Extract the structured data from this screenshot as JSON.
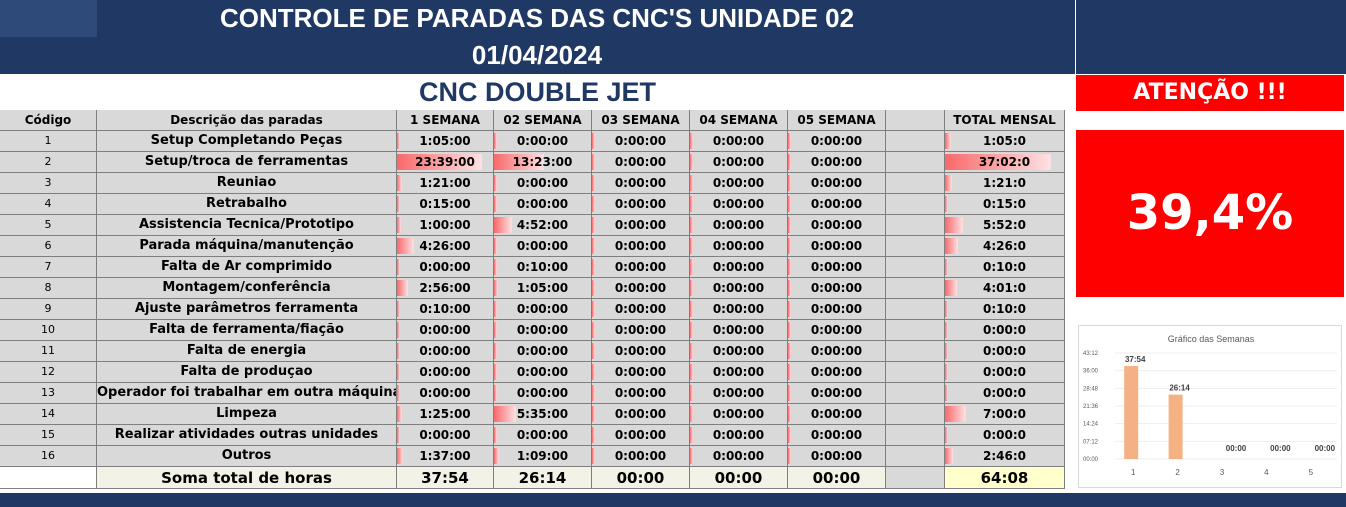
{
  "header": {
    "title": "CONTROLE DE PARADAS DAS CNC'S UNIDADE 02",
    "date": "01/04/2024",
    "machine": "CNC DOUBLE JET"
  },
  "table": {
    "columns": {
      "code": "Código",
      "description": "Descrição das paradas",
      "weeks": [
        "1 SEMANA",
        "02 SEMANA",
        "03 SEMANA",
        "04 SEMANA",
        "05 SEMANA"
      ],
      "total": "TOTAL MENSAL"
    },
    "rows": [
      {
        "code": "1",
        "description": "Setup Completando Peças",
        "weeks": [
          "1:05:00",
          "0:00:00",
          "0:00:00",
          "0:00:00",
          "0:00:00"
        ],
        "week_bars": [
          0,
          0,
          0,
          0,
          0
        ],
        "total": "1:05:0",
        "total_bar": 0.05
      },
      {
        "code": "2",
        "description": "Setup/troca de ferramentas",
        "weeks": [
          "23:39:00",
          "13:23:00",
          "0:00:00",
          "0:00:00",
          "0:00:00"
        ],
        "week_bars": [
          0.95,
          0.55,
          0,
          0,
          0
        ],
        "total": "37:02:0",
        "total_bar": 0.95
      },
      {
        "code": "3",
        "description": "Reuniao",
        "weeks": [
          "1:21:00",
          "0:00:00",
          "0:00:00",
          "0:00:00",
          "0:00:00"
        ],
        "week_bars": [
          0.06,
          0,
          0,
          0,
          0
        ],
        "total": "1:21:0",
        "total_bar": 0.06
      },
      {
        "code": "4",
        "description": "Retrabalho",
        "weeks": [
          "0:15:00",
          "0:00:00",
          "0:00:00",
          "0:00:00",
          "0:00:00"
        ],
        "week_bars": [
          0.02,
          0,
          0,
          0,
          0
        ],
        "total": "0:15:0",
        "total_bar": 0.02
      },
      {
        "code": "5",
        "description": "Assistencia Tecnica/Prototipo",
        "weeks": [
          "1:00:00",
          "4:52:00",
          "0:00:00",
          "0:00:00",
          "0:00:00"
        ],
        "week_bars": [
          0.05,
          0.2,
          0,
          0,
          0
        ],
        "total": "5:52:0",
        "total_bar": 0.16
      },
      {
        "code": "6",
        "description": "Parada máquina/manutenção",
        "weeks": [
          "4:26:00",
          "0:00:00",
          "0:00:00",
          "0:00:00",
          "0:00:00"
        ],
        "week_bars": [
          0.19,
          0,
          0,
          0,
          0
        ],
        "total": "4:26:0",
        "total_bar": 0.12
      },
      {
        "code": "7",
        "description": "Falta de Ar comprimido",
        "weeks": [
          "0:00:00",
          "0:10:00",
          "0:00:00",
          "0:00:00",
          "0:00:00"
        ],
        "week_bars": [
          0,
          0.01,
          0,
          0,
          0
        ],
        "total": "0:10:0",
        "total_bar": 0.01
      },
      {
        "code": "8",
        "description": "Montagem/conferência",
        "weeks": [
          "2:56:00",
          "1:05:00",
          "0:00:00",
          "0:00:00",
          "0:00:00"
        ],
        "week_bars": [
          0.12,
          0.04,
          0,
          0,
          0
        ],
        "total": "4:01:0",
        "total_bar": 0.11
      },
      {
        "code": "9",
        "description": "Ajuste parâmetros ferramenta",
        "weeks": [
          "0:10:00",
          "0:00:00",
          "0:00:00",
          "0:00:00",
          "0:00:00"
        ],
        "week_bars": [
          0.01,
          0,
          0,
          0,
          0
        ],
        "total": "0:10:0",
        "total_bar": 0.01
      },
      {
        "code": "10",
        "description": "Falta de ferramenta/fiação",
        "weeks": [
          "0:00:00",
          "0:00:00",
          "0:00:00",
          "0:00:00",
          "0:00:00"
        ],
        "week_bars": [
          0,
          0,
          0,
          0,
          0
        ],
        "total": "0:00:0",
        "total_bar": 0
      },
      {
        "code": "11",
        "description": "Falta de energia",
        "weeks": [
          "0:00:00",
          "0:00:00",
          "0:00:00",
          "0:00:00",
          "0:00:00"
        ],
        "week_bars": [
          0,
          0,
          0,
          0,
          0
        ],
        "total": "0:00:0",
        "total_bar": 0
      },
      {
        "code": "12",
        "description": "Falta de produçao",
        "weeks": [
          "0:00:00",
          "0:00:00",
          "0:00:00",
          "0:00:00",
          "0:00:00"
        ],
        "week_bars": [
          0,
          0,
          0,
          0,
          0
        ],
        "total": "0:00:0",
        "total_bar": 0
      },
      {
        "code": "13",
        "description": "Operador foi trabalhar em outra máquina",
        "weeks": [
          "0:00:00",
          "0:00:00",
          "0:00:00",
          "0:00:00",
          "0:00:00"
        ],
        "week_bars": [
          0,
          0,
          0,
          0,
          0
        ],
        "total": "0:00:0",
        "total_bar": 0
      },
      {
        "code": "14",
        "description": "Limpeza",
        "weeks": [
          "1:25:00",
          "5:35:00",
          "0:00:00",
          "0:00:00",
          "0:00:00"
        ],
        "week_bars": [
          0.06,
          0.24,
          0,
          0,
          0
        ],
        "total": "7:00:0",
        "total_bar": 0.19
      },
      {
        "code": "15",
        "description": "Realizar atividades outras unidades",
        "weeks": [
          "0:00:00",
          "0:00:00",
          "0:00:00",
          "0:00:00",
          "0:00:00"
        ],
        "week_bars": [
          0,
          0,
          0,
          0,
          0
        ],
        "total": "0:00:0",
        "total_bar": 0
      },
      {
        "code": "16",
        "description": "Outros",
        "weeks": [
          "1:37:00",
          "1:09:00",
          "0:00:00",
          "0:00:00",
          "0:00:00"
        ],
        "week_bars": [
          0.07,
          0.05,
          0,
          0,
          0
        ],
        "total": "2:46:0",
        "total_bar": 0.07
      }
    ],
    "sum": {
      "label": "Soma total de horas",
      "weeks": [
        "37:54",
        "26:14",
        "00:00",
        "00:00",
        "00:00"
      ],
      "total": "64:08"
    }
  },
  "alert": {
    "label": "ATENÇÃO !!!",
    "percent": "39,4%"
  },
  "colors": {
    "header_bg": "#1f3864",
    "alert_red": "#ff0000",
    "table_bg": "#d9d9d9",
    "databar": "#f8696b",
    "chart_bar": "#f4b183",
    "total_bg": "#ffffcc"
  },
  "chart_data": {
    "type": "bar",
    "title": "Gráfico das Semanas",
    "categories": [
      "1",
      "2",
      "3",
      "4",
      "5"
    ],
    "values": [
      37.9,
      26.233,
      0,
      0,
      0
    ],
    "data_labels": [
      "37:54",
      "26:14",
      "00:00",
      "00:00",
      "00:00"
    ],
    "yticks": [
      "43:12",
      "36:00",
      "28:48",
      "21:36",
      "14:24",
      "07:12",
      "00:00"
    ],
    "ylim": [
      0,
      43.2
    ],
    "grid": true
  }
}
